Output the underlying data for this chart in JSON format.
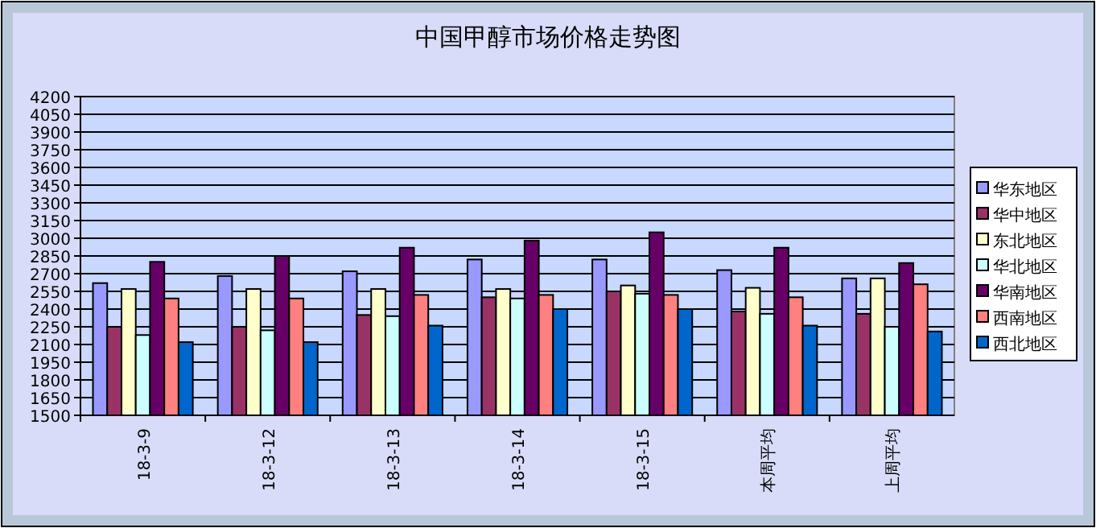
{
  "chart_data": {
    "type": "bar",
    "title": "中国甲醇市场价格走势图",
    "categories": [
      "18-3-9",
      "18-3-12",
      "18-3-13",
      "18-3-14",
      "18-3-15",
      "本周平均",
      "上周平均"
    ],
    "series": [
      {
        "name": "华东地区",
        "color": "#9999ff",
        "values": [
          2620,
          2680,
          2720,
          2820,
          2820,
          2730,
          2660
        ]
      },
      {
        "name": "华中地区",
        "color": "#993366",
        "values": [
          2250,
          2250,
          2350,
          2500,
          2550,
          2380,
          2360
        ]
      },
      {
        "name": "东北地区",
        "color": "#ffffcc",
        "values": [
          2570,
          2570,
          2570,
          2570,
          2600,
          2580,
          2660
        ]
      },
      {
        "name": "华北地区",
        "color": "#ccffff",
        "values": [
          2180,
          2220,
          2340,
          2490,
          2530,
          2360,
          2250
        ]
      },
      {
        "name": "华南地区",
        "color": "#660066",
        "values": [
          2800,
          2850,
          2920,
          2980,
          3050,
          2920,
          2790
        ]
      },
      {
        "name": "西南地区",
        "color": "#ff8080",
        "values": [
          2490,
          2490,
          2520,
          2520,
          2520,
          2500,
          2610
        ]
      },
      {
        "name": "西北地区",
        "color": "#0066cc",
        "values": [
          2120,
          2120,
          2260,
          2400,
          2400,
          2260,
          2210
        ]
      }
    ],
    "ylim": [
      1500,
      4200
    ],
    "yticks": [
      1500,
      1650,
      1800,
      1950,
      2100,
      2250,
      2400,
      2550,
      2700,
      2850,
      3000,
      3150,
      3300,
      3450,
      3600,
      3750,
      3900,
      4050,
      4200
    ],
    "grid": "y",
    "legend": "right"
  }
}
